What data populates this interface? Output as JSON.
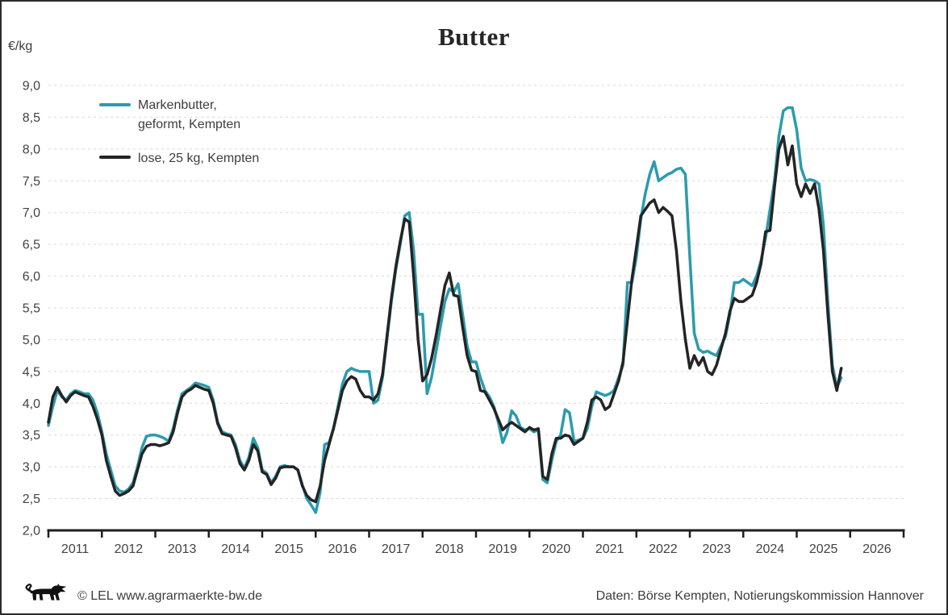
{
  "figure": {
    "title": "Butter",
    "unit_label": "€/kg",
    "footer": {
      "left_text": "© LEL www.agrarmaerkte-bw.de",
      "right_text": "Daten: Börse Kempten, Notierungskommission Hannover",
      "logo_name": "baden-wuerttemberg-lion"
    }
  },
  "chart_data": {
    "type": "line",
    "title": "Butter",
    "ylabel": "€/kg",
    "xlabel": "",
    "frequency": "monthly",
    "x_start": "2011-01",
    "x_end": "2025-11",
    "ylim": [
      2.0,
      9.0
    ],
    "y_tick_step": 0.5,
    "y_tick_labels": [
      "2,0",
      "2,5",
      "3,0",
      "3,5",
      "4,0",
      "4,5",
      "5,0",
      "5,5",
      "6,0",
      "6,5",
      "7,0",
      "7,5",
      "8,0",
      "8,5",
      "9,0"
    ],
    "x_tick_labels": [
      "2011",
      "2012",
      "2013",
      "2014",
      "2015",
      "2016",
      "2017",
      "2018",
      "2019",
      "2020",
      "2021",
      "2022",
      "2023",
      "2024",
      "2025",
      "2026"
    ],
    "grid": "horizontal-dashed",
    "legend_position": "top-left-inside",
    "axis_color": "#1f1f1f",
    "grid_color": "#d8d8d8",
    "series": [
      {
        "name": "Markenbutter, geformt, Kempten",
        "legend_lines": [
          "Markenbutter,",
          "geformt, Kempten"
        ],
        "color": "#2C9BAD",
        "values": [
          3.65,
          3.95,
          4.2,
          4.1,
          4.05,
          4.15,
          4.2,
          4.18,
          4.15,
          4.15,
          4.05,
          3.85,
          3.55,
          3.2,
          2.95,
          2.7,
          2.62,
          2.6,
          2.65,
          2.75,
          3.0,
          3.3,
          3.48,
          3.5,
          3.5,
          3.48,
          3.45,
          3.4,
          3.6,
          3.9,
          4.15,
          4.2,
          4.25,
          4.32,
          4.3,
          4.28,
          4.25,
          4.05,
          3.7,
          3.55,
          3.52,
          3.5,
          3.35,
          3.1,
          2.98,
          3.15,
          3.45,
          3.3,
          2.95,
          2.9,
          2.75,
          2.85,
          3.0,
          3.02,
          3.0,
          3.0,
          2.95,
          2.72,
          2.5,
          2.4,
          2.28,
          2.6,
          3.35,
          3.38,
          3.6,
          3.95,
          4.3,
          4.5,
          4.55,
          4.52,
          4.5,
          4.5,
          4.5,
          4.0,
          4.05,
          4.4,
          5.0,
          5.6,
          6.1,
          6.5,
          6.95,
          7.0,
          6.4,
          5.4,
          5.4,
          4.15,
          4.4,
          4.8,
          5.2,
          5.6,
          5.8,
          5.75,
          5.88,
          5.4,
          4.9,
          4.65,
          4.65,
          4.4,
          4.2,
          4.1,
          3.95,
          3.7,
          3.38,
          3.55,
          3.88,
          3.8,
          3.62,
          3.58,
          3.6,
          3.55,
          3.58,
          2.8,
          2.75,
          3.1,
          3.4,
          3.5,
          3.9,
          3.85,
          3.4,
          3.42,
          3.45,
          3.6,
          3.95,
          4.18,
          4.15,
          4.12,
          4.15,
          4.2,
          4.4,
          4.6,
          5.9,
          5.9,
          6.3,
          6.9,
          7.3,
          7.6,
          7.8,
          7.5,
          7.55,
          7.6,
          7.63,
          7.68,
          7.7,
          7.6,
          6.3,
          5.1,
          4.85,
          4.8,
          4.82,
          4.78,
          4.75,
          4.9,
          5.05,
          5.4,
          5.9,
          5.9,
          5.95,
          5.9,
          5.85,
          6.0,
          6.25,
          6.6,
          7.05,
          7.5,
          8.2,
          8.6,
          8.65,
          8.65,
          8.3,
          7.7,
          7.5,
          7.52,
          7.5,
          7.45,
          6.8,
          5.6,
          4.6,
          4.25,
          4.4
        ]
      },
      {
        "name": "lose, 25 kg, Kempten",
        "legend_lines": [
          "lose, 25 kg, Kempten"
        ],
        "color": "#242424",
        "values": [
          3.7,
          4.1,
          4.25,
          4.12,
          4.02,
          4.12,
          4.18,
          4.15,
          4.12,
          4.1,
          3.95,
          3.75,
          3.5,
          3.1,
          2.85,
          2.62,
          2.55,
          2.58,
          2.62,
          2.7,
          2.95,
          3.2,
          3.32,
          3.35,
          3.35,
          3.33,
          3.35,
          3.38,
          3.55,
          3.85,
          4.1,
          4.18,
          4.22,
          4.28,
          4.25,
          4.22,
          4.2,
          4.0,
          3.68,
          3.52,
          3.5,
          3.48,
          3.3,
          3.05,
          2.95,
          3.1,
          3.35,
          3.25,
          2.92,
          2.88,
          2.72,
          2.82,
          2.98,
          3.0,
          3.0,
          3.0,
          2.95,
          2.7,
          2.55,
          2.48,
          2.45,
          2.7,
          3.1,
          3.35,
          3.6,
          3.9,
          4.2,
          4.35,
          4.42,
          4.38,
          4.2,
          4.1,
          4.1,
          4.05,
          4.15,
          4.45,
          5.05,
          5.65,
          6.15,
          6.55,
          6.9,
          6.85,
          6.0,
          5.0,
          4.35,
          4.45,
          4.7,
          5.05,
          5.45,
          5.85,
          6.05,
          5.7,
          5.68,
          5.2,
          4.75,
          4.52,
          4.5,
          4.2,
          4.18,
          4.05,
          3.92,
          3.75,
          3.58,
          3.65,
          3.7,
          3.65,
          3.6,
          3.55,
          3.62,
          3.58,
          3.6,
          2.85,
          2.8,
          3.2,
          3.45,
          3.45,
          3.5,
          3.48,
          3.35,
          3.4,
          3.45,
          3.7,
          4.05,
          4.1,
          4.05,
          3.9,
          3.95,
          4.15,
          4.35,
          4.65,
          5.3,
          5.95,
          6.45,
          6.95,
          7.05,
          7.15,
          7.2,
          7.0,
          7.08,
          7.02,
          6.95,
          6.4,
          5.6,
          5.0,
          4.55,
          4.75,
          4.6,
          4.72,
          4.5,
          4.45,
          4.6,
          4.85,
          5.1,
          5.45,
          5.65,
          5.6,
          5.6,
          5.65,
          5.7,
          5.9,
          6.2,
          6.7,
          6.72,
          7.4,
          8.0,
          8.2,
          7.75,
          8.05,
          7.45,
          7.25,
          7.45,
          7.3,
          7.45,
          7.05,
          6.4,
          5.4,
          4.5,
          4.2,
          4.55
        ]
      }
    ]
  }
}
